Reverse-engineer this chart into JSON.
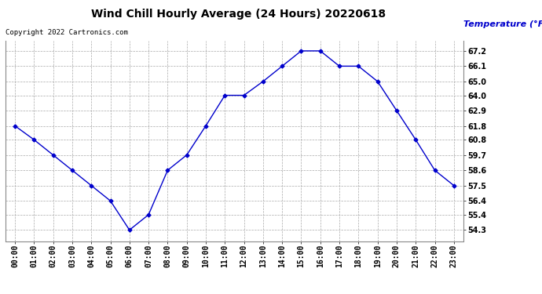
{
  "title": "Wind Chill Hourly Average (24 Hours) 20220618",
  "ylabel": "Temperature (°F)",
  "copyright": "Copyright 2022 Cartronics.com",
  "line_color": "#0000cc",
  "background_color": "#ffffff",
  "grid_color": "#aaaaaa",
  "hours": [
    0,
    1,
    2,
    3,
    4,
    5,
    6,
    7,
    8,
    9,
    10,
    11,
    12,
    13,
    14,
    15,
    16,
    17,
    18,
    19,
    20,
    21,
    22,
    23
  ],
  "hour_labels": [
    "00:00",
    "01:00",
    "02:00",
    "03:00",
    "04:00",
    "05:00",
    "06:00",
    "07:00",
    "08:00",
    "09:00",
    "10:00",
    "11:00",
    "12:00",
    "13:00",
    "14:00",
    "15:00",
    "16:00",
    "17:00",
    "18:00",
    "19:00",
    "20:00",
    "21:00",
    "22:00",
    "23:00"
  ],
  "values": [
    61.8,
    60.8,
    59.7,
    58.6,
    57.5,
    56.4,
    54.3,
    55.4,
    58.6,
    59.7,
    61.8,
    64.0,
    64.0,
    65.0,
    66.1,
    67.2,
    67.2,
    66.1,
    66.1,
    65.0,
    62.9,
    60.8,
    58.6,
    57.5
  ],
  "yticks": [
    54.3,
    55.4,
    56.4,
    57.5,
    58.6,
    59.7,
    60.8,
    61.8,
    62.9,
    64.0,
    65.0,
    66.1,
    67.2
  ],
  "ylim": [
    53.5,
    67.9
  ],
  "xlim": [
    -0.5,
    23.5
  ],
  "title_fontsize": 10,
  "tick_fontsize": 7,
  "ytick_fontsize": 7,
  "copyright_fontsize": 6.5,
  "ylabel_fontsize": 8
}
